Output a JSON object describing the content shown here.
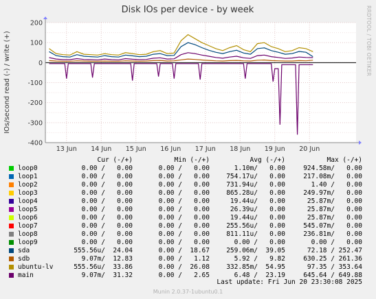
{
  "side_label": "RRDTOOL / TOBI OETIKER",
  "footer": "Munin 2.0.37-1ubuntu0.1",
  "last_update": "Last update: Fri Jun 20 23:30:08 2025",
  "legend_header": {
    "cur": "Cur (-/+)",
    "min": "Min (-/+)",
    "avg": "Avg (-/+)",
    "max": "Max (-/+)"
  },
  "legend": [
    {
      "name": "loop0",
      "color": "#00cc00",
      "cur": "0.00 /   0.00",
      "min": "0.00 /   0.00",
      "avg": "1.10m/   0.00",
      "max": "924.58m/   0.00"
    },
    {
      "name": "loop1",
      "color": "#0066b3",
      "cur": "0.00 /   0.00",
      "min": "0.00 /   0.00",
      "avg": "754.17u/   0.00",
      "max": "217.08m/   0.00"
    },
    {
      "name": "loop2",
      "color": "#ff8000",
      "cur": "0.00 /   0.00",
      "min": "0.00 /   0.00",
      "avg": "731.94u/   0.00",
      "max": "1.40 /   0.00"
    },
    {
      "name": "loop3",
      "color": "#ffcc00",
      "cur": "0.00 /   0.00",
      "min": "0.00 /   0.00",
      "avg": "865.28u/   0.00",
      "max": "249.97m/   0.00"
    },
    {
      "name": "loop4",
      "color": "#330099",
      "cur": "0.00 /   0.00",
      "min": "0.00 /   0.00",
      "avg": "19.44u/   0.00",
      "max": "25.87m/   0.00"
    },
    {
      "name": "loop5",
      "color": "#990099",
      "cur": "0.00 /   0.00",
      "min": "0.00 /   0.00",
      "avg": "26.39u/   0.00",
      "max": "25.87m/   0.00"
    },
    {
      "name": "loop6",
      "color": "#ccff00",
      "cur": "0.00 /   0.00",
      "min": "0.00 /   0.00",
      "avg": "19.44u/   0.00",
      "max": "25.87m/   0.00"
    },
    {
      "name": "loop7",
      "color": "#ff0000",
      "cur": "0.00 /   0.00",
      "min": "0.00 /   0.00",
      "avg": "255.56u/   0.00",
      "max": "545.07m/   0.00"
    },
    {
      "name": "loop8",
      "color": "#808080",
      "cur": "0.00 /   0.00",
      "min": "0.00 /   0.00",
      "avg": "811.11u/   0.00",
      "max": "236.81m/   0.00"
    },
    {
      "name": "loop9",
      "color": "#008f00",
      "cur": "0.00 /   0.00",
      "min": "0.00 /   0.00",
      "avg": "0.00 /   0.00",
      "max": "0.00 /   0.00"
    },
    {
      "name": "sda",
      "color": "#00487d",
      "cur": "555.56u/  24.04",
      "min": "0.00 /  18.67",
      "avg": "259.06m/  39.05",
      "max": "72.18 / 252.47"
    },
    {
      "name": "sdb",
      "color": "#b35a00",
      "cur": "9.07m/  12.83",
      "min": "0.00 /   1.12",
      "avg": "5.92 /   9.82",
      "max": "630.25 / 261.36"
    },
    {
      "name": "ubuntu-lv",
      "color": "#b38f00",
      "cur": "555.56u/  33.86",
      "min": "0.00 /  26.08",
      "avg": "332.85m/  54.95",
      "max": "97.35 / 353.64"
    },
    {
      "name": "main",
      "color": "#6b006b",
      "cur": "9.07m/  31.32",
      "min": "0.00 /   2.65",
      "avg": "6.48 /  23.19",
      "max": "645.64 / 649.88"
    }
  ],
  "chart_data": {
    "type": "line",
    "title": "Disk IOs per device - by week",
    "ylabel": "IOs/second read (-) / write (+)",
    "xlabel": "",
    "ylim": [
      -400,
      200
    ],
    "yticks": [
      -400,
      -300,
      -200,
      -100,
      0,
      100,
      200
    ],
    "xlim": [
      0,
      7.6
    ],
    "xticks": [
      {
        "x": 1,
        "label": "13 Jun"
      },
      {
        "x": 2,
        "label": "14 Jun"
      },
      {
        "x": 3,
        "label": "15 Jun"
      },
      {
        "x": 4,
        "label": "16 Jun"
      },
      {
        "x": 5,
        "label": "17 Jun"
      },
      {
        "x": 6,
        "label": "18 Jun"
      },
      {
        "x": 7,
        "label": "19 Jun"
      },
      {
        "x": 8,
        "label": "20 Jun"
      }
    ],
    "grid": true,
    "series": [
      {
        "name": "ubuntu-lv",
        "color": "#b38f00",
        "x": [
          0,
          0.2,
          0.4,
          0.6,
          0.8,
          1,
          1.2,
          1.4,
          1.6,
          1.8,
          2,
          2.2,
          2.4,
          2.6,
          2.8,
          3,
          3.2,
          3.4,
          3.6,
          3.8,
          4,
          4.2,
          4.4,
          4.6,
          4.8,
          5,
          5.2,
          5.4,
          5.6,
          5.8,
          6,
          6.2,
          6.4,
          6.6,
          6.8,
          7,
          7.2,
          7.4,
          7.6
        ],
        "y": [
          70,
          45,
          40,
          38,
          55,
          42,
          40,
          38,
          45,
          40,
          38,
          50,
          45,
          40,
          42,
          55,
          60,
          45,
          48,
          110,
          140,
          120,
          100,
          85,
          70,
          60,
          75,
          85,
          65,
          55,
          95,
          100,
          80,
          70,
          55,
          60,
          75,
          70,
          55
        ]
      },
      {
        "name": "sda",
        "color": "#00487d",
        "x": [
          0,
          0.2,
          0.4,
          0.6,
          0.8,
          1,
          1.2,
          1.4,
          1.6,
          1.8,
          2,
          2.2,
          2.4,
          2.6,
          2.8,
          3,
          3.2,
          3.4,
          3.6,
          3.8,
          4,
          4.2,
          4.4,
          4.6,
          4.8,
          5,
          5.2,
          5.4,
          5.6,
          5.8,
          6,
          6.2,
          6.4,
          6.6,
          6.8,
          7,
          7.2,
          7.4,
          7.6
        ],
        "y": [
          55,
          35,
          30,
          28,
          40,
          32,
          30,
          28,
          35,
          30,
          28,
          38,
          34,
          30,
          32,
          42,
          45,
          35,
          36,
          80,
          100,
          90,
          75,
          62,
          52,
          45,
          55,
          62,
          48,
          42,
          70,
          74,
          60,
          52,
          42,
          45,
          56,
          52,
          30
        ]
      },
      {
        "name": "main",
        "color": "#6b006b",
        "x": [
          0,
          0.2,
          0.4,
          0.6,
          0.8,
          1,
          1.2,
          1.4,
          1.6,
          1.8,
          2,
          2.2,
          2.4,
          2.6,
          2.8,
          3,
          3.2,
          3.4,
          3.6,
          3.8,
          4,
          4.2,
          4.4,
          4.6,
          4.8,
          5,
          5.2,
          5.4,
          5.6,
          5.8,
          6,
          6.2,
          6.4,
          6.6,
          6.8,
          7,
          7.2,
          7.4,
          7.6
        ],
        "y": [
          25,
          18,
          15,
          15,
          20,
          16,
          15,
          14,
          18,
          15,
          14,
          20,
          17,
          15,
          16,
          22,
          24,
          18,
          19,
          40,
          50,
          45,
          38,
          32,
          26,
          22,
          28,
          32,
          24,
          21,
          35,
          38,
          30,
          26,
          21,
          23,
          28,
          26,
          25
        ]
      },
      {
        "name": "sdb",
        "color": "#b35a00",
        "x": [
          0,
          0.2,
          0.4,
          0.6,
          0.8,
          1,
          1.2,
          1.4,
          1.6,
          1.8,
          2,
          2.2,
          2.4,
          2.6,
          2.8,
          3,
          3.2,
          3.4,
          3.6,
          3.8,
          4,
          4.2,
          4.4,
          4.6,
          4.8,
          5,
          5.2,
          5.4,
          5.6,
          5.8,
          6,
          6.2,
          6.4,
          6.6,
          6.8,
          7,
          7.2,
          7.4,
          7.6
        ],
        "y": [
          10,
          8,
          7,
          7,
          9,
          8,
          7,
          7,
          8,
          7,
          7,
          9,
          8,
          7,
          8,
          10,
          11,
          8,
          9,
          14,
          18,
          16,
          13,
          11,
          9,
          8,
          10,
          11,
          9,
          8,
          12,
          13,
          10,
          9,
          8,
          8,
          10,
          9,
          12
        ]
      },
      {
        "name": "main-read",
        "color": "#6b006b",
        "x": [
          0,
          0.45,
          0.5,
          0.55,
          1.2,
          1.25,
          1.3,
          2.35,
          2.4,
          2.45,
          3.1,
          3.15,
          3.2,
          3.55,
          3.6,
          3.65,
          4.3,
          4.35,
          4.4,
          5.6,
          5.65,
          5.7,
          6.4,
          6.45,
          6.5,
          6.6,
          6.65,
          6.7,
          7.1,
          7.15,
          7.2,
          7.6
        ],
        "y": [
          -5,
          -5,
          -80,
          -5,
          -5,
          -75,
          -5,
          -5,
          -90,
          -5,
          -5,
          -70,
          -5,
          -5,
          -80,
          -5,
          -5,
          -85,
          -5,
          -5,
          -80,
          -5,
          -5,
          -95,
          -30,
          -30,
          -310,
          -10,
          -10,
          -360,
          -10,
          -10
        ]
      }
    ]
  }
}
